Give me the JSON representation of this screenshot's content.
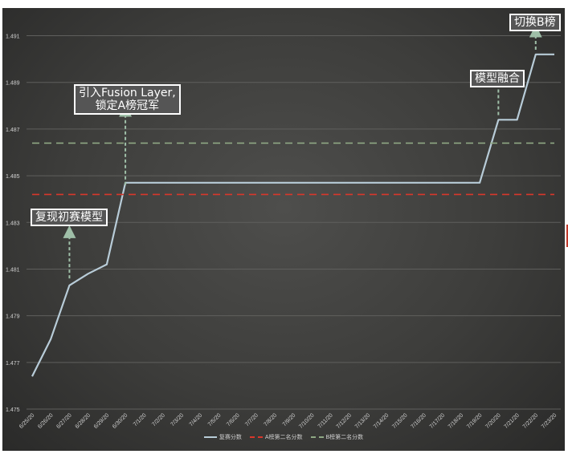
{
  "chart_data": {
    "type": "line",
    "x": [
      "6/25/20",
      "6/26/20",
      "6/27/20",
      "6/28/20",
      "6/29/20",
      "6/30/20",
      "7/1/20",
      "7/2/20",
      "7/3/20",
      "7/4/20",
      "7/5/20",
      "7/6/20",
      "7/7/20",
      "7/8/20",
      "7/9/20",
      "7/10/20",
      "7/11/20",
      "7/12/20",
      "7/13/20",
      "7/14/20",
      "7/15/20",
      "7/16/20",
      "7/17/20",
      "7/18/20",
      "7/19/20",
      "7/20/20",
      "7/21/20",
      "7/22/20",
      "7/23/20"
    ],
    "series": [
      {
        "name": "复赛分数",
        "color": "#b8ccd8",
        "style": "solid",
        "values": [
          1.4764,
          1.478,
          1.4803,
          1.4808,
          1.4812,
          1.4847,
          1.4847,
          1.4847,
          1.4847,
          1.4847,
          1.4847,
          1.4847,
          1.4847,
          1.4847,
          1.4847,
          1.4847,
          1.4847,
          1.4847,
          1.4847,
          1.4847,
          1.4847,
          1.4847,
          1.4847,
          1.4847,
          1.4847,
          1.4874,
          1.4874,
          1.4902,
          1.4902
        ]
      },
      {
        "name": "A榜第二名分数",
        "color": "#d9372b",
        "style": "dashed",
        "values": [
          1.4842,
          1.4842,
          1.4842,
          1.4842,
          1.4842,
          1.4842,
          1.4842,
          1.4842,
          1.4842,
          1.4842,
          1.4842,
          1.4842,
          1.4842,
          1.4842,
          1.4842,
          1.4842,
          1.4842,
          1.4842,
          1.4842,
          1.4842,
          1.4842,
          1.4842,
          1.4842,
          1.4842,
          1.4842,
          1.4842,
          1.4842,
          1.4842,
          1.4842
        ]
      },
      {
        "name": "B榜第二名分数",
        "color": "#8fa884",
        "style": "dashed",
        "values": [
          1.4864,
          1.4864,
          1.4864,
          1.4864,
          1.4864,
          1.4864,
          1.4864,
          1.4864,
          1.4864,
          1.4864,
          1.4864,
          1.4864,
          1.4864,
          1.4864,
          1.4864,
          1.4864,
          1.4864,
          1.4864,
          1.4864,
          1.4864,
          1.4864,
          1.4864,
          1.4864,
          1.4864,
          1.4864,
          1.4864,
          1.4864,
          1.4864,
          1.4864
        ]
      }
    ],
    "ylim": [
      1.475,
      1.4915
    ],
    "yticks": [
      1.475,
      1.477,
      1.479,
      1.481,
      1.483,
      1.485,
      1.487,
      1.489,
      1.491
    ],
    "grid": true,
    "legend": "bottom",
    "annotations": [
      {
        "id": "reproduce",
        "text": "复现初赛模型",
        "x_index": 2,
        "y_from": 1.4806,
        "y_to": 1.4826
      },
      {
        "id": "fusion",
        "text": "引入Fusion Layer,\n锁定A榜冠军",
        "x_index": 5,
        "y_from": 1.4846,
        "y_to": 1.4878
      },
      {
        "id": "ensemble",
        "text": "模型融合",
        "x_index": 25,
        "y_from": 1.4876,
        "y_to": 1.4891
      },
      {
        "id": "switch",
        "text": "切换B榜",
        "x_index": 27,
        "y_from": 1.4904,
        "y_to": 1.4912
      }
    ]
  }
}
